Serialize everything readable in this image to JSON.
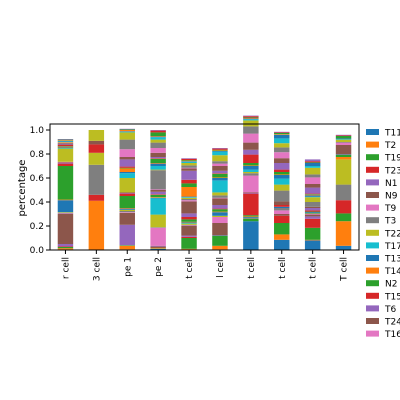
{
  "chart_data": {
    "type": "bar",
    "stacked": true,
    "title": "",
    "xlabel": "",
    "ylabel": "percentage",
    "ylim": [
      0,
      1.05
    ],
    "yticks": [
      "0.0",
      "0.2",
      "0.4",
      "0.6",
      "0.8",
      "1.0"
    ],
    "grid": false,
    "legend_position": "right",
    "categories": [
      "r cell",
      "3 cell",
      "pe 1",
      "pe 2",
      "t cell",
      "l cell",
      "t cell",
      "t cell",
      "t cell",
      "T cell"
    ],
    "series": [
      {
        "name": "T11",
        "color": "#1f77b4",
        "values": [
          0.005,
          0.0,
          0.005,
          0.01,
          0.005,
          0.005,
          0.24,
          0.085,
          0.08,
          0.035
        ]
      },
      {
        "name": "T2",
        "color": "#ff7f0e",
        "values": [
          0.01,
          0.41,
          0.03,
          0.005,
          0.005,
          0.03,
          0.0,
          0.045,
          0.005,
          0.205
        ]
      },
      {
        "name": "T19",
        "color": "#2ca02c",
        "values": [
          0.01,
          0.0,
          0.005,
          0.005,
          0.09,
          0.085,
          0.02,
          0.095,
          0.1,
          0.0
        ]
      },
      {
        "name": "T23",
        "color": "#d62728",
        "values": [
          0.005,
          0.0,
          0.0,
          0.005,
          0.01,
          0.0,
          0.0,
          0.06,
          0.075,
          0.0
        ]
      },
      {
        "name": "N1",
        "color": "#9467bd",
        "values": [
          0.02,
          0.0,
          0.17,
          0.005,
          0.01,
          0.005,
          0.0,
          0.0,
          0.02,
          0.0
        ]
      },
      {
        "name": "N9",
        "color": "#8c564b",
        "values": [
          0.25,
          0.0,
          0.1,
          0.005,
          0.08,
          0.1,
          0.0,
          0.015,
          0.015,
          0.0
        ]
      },
      {
        "name": "T9",
        "color": "#e377c2",
        "values": [
          0.005,
          0.0,
          0.005,
          0.15,
          0.005,
          0.05,
          0.0,
          0.03,
          0.005,
          0.0
        ]
      },
      {
        "name": "T3",
        "color": "#7f7f7f",
        "values": [
          0.005,
          0.0,
          0.01,
          0.005,
          0.005,
          0.0,
          0.01,
          0.02,
          0.0,
          0.0
        ]
      },
      {
        "name": "T22",
        "color": "#bcbd22",
        "values": [
          0.005,
          0.0,
          0.01,
          0.105,
          0.01,
          0.01,
          0.0,
          0.0,
          0.005,
          0.0
        ]
      },
      {
        "name": "T17",
        "color": "#17becf",
        "values": [
          0.0,
          0.0,
          0.0,
          0.135,
          0.005,
          0.0,
          0.0,
          0.0,
          0.0,
          0.0
        ]
      },
      {
        "name": "T13",
        "color": "#1f77b4",
        "values": [
          0.1,
          0.0,
          0.01,
          0.005,
          0.005,
          0.03,
          0.005,
          0.01,
          0.01,
          0.0
        ]
      },
      {
        "name": "T14",
        "color": "#ff7f0e",
        "values": [
          0.005,
          0.0,
          0.005,
          0.005,
          0.005,
          0.005,
          0.005,
          0.0,
          0.0,
          0.0
        ]
      },
      {
        "name": "N2",
        "color": "#2ca02c",
        "values": [
          0.28,
          0.0,
          0.1,
          0.02,
          0.02,
          0.02,
          0.01,
          0.0,
          0.005,
          0.065
        ]
      },
      {
        "name": "T15",
        "color": "#d62728",
        "values": [
          0.02,
          0.05,
          0.02,
          0.005,
          0.02,
          0.005,
          0.18,
          0.015,
          0.01,
          0.11
        ]
      },
      {
        "name": "T6",
        "color": "#9467bd",
        "values": [
          0.005,
          0.0,
          0.005,
          0.02,
          0.03,
          0.03,
          0.005,
          0.0,
          0.02,
          0.0
        ]
      },
      {
        "name": "T24",
        "color": "#8c564b",
        "values": [
          0.005,
          0.0,
          0.005,
          0.015,
          0.1,
          0.055,
          0.005,
          0.03,
          0.01,
          0.0
        ]
      },
      {
        "name": "T16",
        "color": "#e377c2",
        "values": [
          0.005,
          0.0,
          0.0,
          0.005,
          0.01,
          0.005,
          0.14,
          0.0,
          0.0,
          0.0
        ]
      },
      {
        "name": "",
        "color": "#7f7f7f",
        "values": [
          0.0,
          0.25,
          0.0,
          0.16,
          0.01,
          0.02,
          0.02,
          0.09,
          0.04,
          0.13
        ]
      },
      {
        "name": "",
        "color": "#bcbd22",
        "values": [
          0.11,
          0.1,
          0.12,
          0.005,
          0.01,
          0.025,
          0.01,
          0.05,
          0.04,
          0.21
        ]
      },
      {
        "name": "",
        "color": "#17becf",
        "values": [
          0.005,
          0.0,
          0.04,
          0.03,
          0.005,
          0.1,
          0.02,
          0.05,
          0.005,
          0.0
        ]
      },
      {
        "name": "",
        "color": "#1f77b4",
        "values": [
          0.005,
          0.0,
          0.01,
          0.02,
          0.005,
          0.02,
          0.03,
          0.03,
          0.01,
          0.0
        ]
      },
      {
        "name": "",
        "color": "#ff7f0e",
        "values": [
          0.005,
          0.0,
          0.03,
          0.005,
          0.08,
          0.005,
          0.005,
          0.005,
          0.005,
          0.02
        ]
      },
      {
        "name": "",
        "color": "#2ca02c",
        "values": [
          0.005,
          0.0,
          0.005,
          0.035,
          0.03,
          0.03,
          0.02,
          0.02,
          0.005,
          0.02
        ]
      },
      {
        "name": "",
        "color": "#d62728",
        "values": [
          0.01,
          0.07,
          0.01,
          0.005,
          0.03,
          0.005,
          0.07,
          0.02,
          0.005,
          0.0
        ]
      },
      {
        "name": "",
        "color": "#9467bd",
        "values": [
          0.005,
          0.0,
          0.06,
          0.01,
          0.075,
          0.02,
          0.04,
          0.055,
          0.05,
          0.005
        ]
      },
      {
        "name": "",
        "color": "#8c564b",
        "values": [
          0.01,
          0.03,
          0.02,
          0.035,
          0.02,
          0.04,
          0.06,
          0.04,
          0.03,
          0.075
        ]
      },
      {
        "name": "",
        "color": "#e377c2",
        "values": [
          0.005,
          0.0,
          0.065,
          0.04,
          0.005,
          0.02,
          0.075,
          0.05,
          0.055,
          0.02
        ]
      },
      {
        "name": "",
        "color": "#7f7f7f",
        "values": [
          0.0,
          0.0,
          0.08,
          0.045,
          0.02,
          0.02,
          0.06,
          0.04,
          0.025,
          0.005
        ]
      },
      {
        "name": "",
        "color": "#bcbd22",
        "values": [
          0.005,
          0.09,
          0.06,
          0.025,
          0.02,
          0.05,
          0.05,
          0.035,
          0.055,
          0.02
        ]
      },
      {
        "name": "",
        "color": "#17becf",
        "values": [
          0.005,
          0.0,
          0.005,
          0.02,
          0.01,
          0.03,
          0.01,
          0.04,
          0.015,
          0.005
        ]
      },
      {
        "name": "",
        "color": "#1f77b4",
        "values": [
          0.005,
          0.0,
          0.005,
          0.005,
          0.005,
          0.005,
          0.005,
          0.03,
          0.025,
          0.005
        ]
      },
      {
        "name": "",
        "color": "#ff7f0e",
        "values": [
          0.005,
          0.0,
          0.01,
          0.005,
          0.005,
          0.005,
          0.005,
          0.005,
          0.0,
          0.0
        ]
      },
      {
        "name": "",
        "color": "#2ca02c",
        "values": [
          0.005,
          0.0,
          0.005,
          0.03,
          0.005,
          0.005,
          0.005,
          0.01,
          0.005,
          0.02
        ]
      },
      {
        "name": "",
        "color": "#d62728",
        "values": [
          0.0,
          0.0,
          0.0,
          0.015,
          0.01,
          0.01,
          0.01,
          0.005,
          0.01,
          0.005
        ]
      },
      {
        "name": "",
        "color": "#9467bd",
        "values": [
          0.005,
          0.0,
          0.005,
          0.005,
          0.005,
          0.005,
          0.005,
          0.005,
          0.015,
          0.005
        ]
      }
    ]
  }
}
